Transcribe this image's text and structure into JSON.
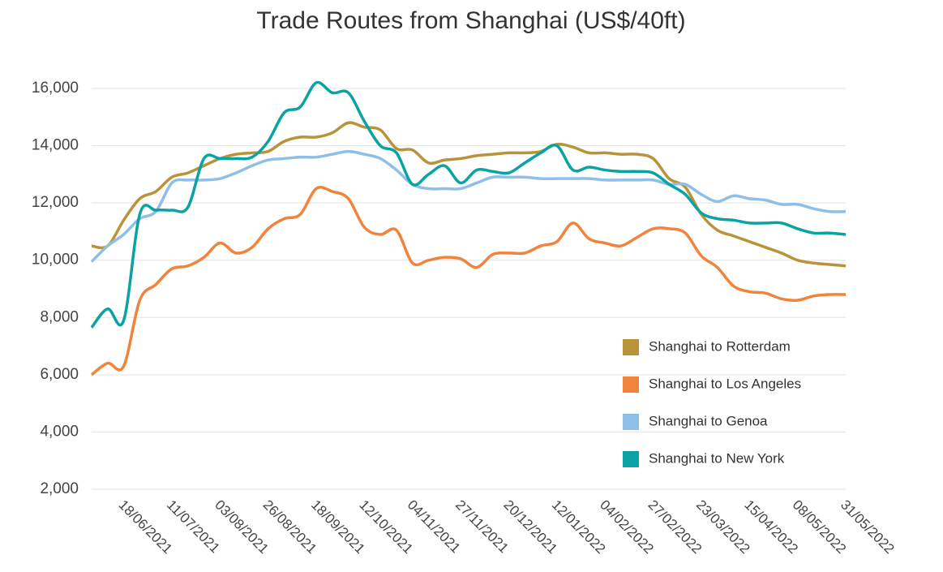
{
  "chart_data": {
    "type": "line",
    "title": "Trade Routes from Shanghai (US$/40ft)",
    "categories": [
      null,
      null,
      "18/06/2021",
      null,
      null,
      "11/07/2021",
      null,
      null,
      "03/08/2021",
      null,
      null,
      "26/08/2021",
      null,
      null,
      "18/09/2021",
      null,
      null,
      "12/10/2021",
      null,
      null,
      "04/11/2021",
      null,
      null,
      "27/11/2021",
      null,
      null,
      "20/12/2021",
      null,
      null,
      "12/01/2022",
      null,
      null,
      "04/02/2022",
      null,
      null,
      "27/02/2022",
      null,
      null,
      "23/03/2022",
      null,
      null,
      "15/04/2022",
      null,
      null,
      "08/05/2022",
      null,
      null,
      "31/05/2022"
    ],
    "series": [
      {
        "name": "Shanghai to Rotterdam",
        "color": "#b8933a",
        "values": [
          10500,
          10500,
          11400,
          12150,
          12400,
          12900,
          13050,
          13300,
          13550,
          13700,
          13750,
          13800,
          14150,
          14300,
          14300,
          14450,
          14800,
          14650,
          14550,
          13900,
          13850,
          13400,
          13500,
          13550,
          13650,
          13700,
          13750,
          13750,
          13800,
          14050,
          13950,
          13750,
          13750,
          13700,
          13700,
          13550,
          12850,
          12550,
          11600,
          11050,
          10850,
          10650,
          10450,
          10250,
          10000,
          9900,
          9850,
          9800
        ]
      },
      {
        "name": "Shanghai to Los Angeles",
        "color": "#f0843c",
        "values": [
          6000,
          6400,
          6300,
          8600,
          9150,
          9700,
          9800,
          10100,
          10600,
          10250,
          10450,
          11100,
          11450,
          11600,
          12500,
          12400,
          12150,
          11150,
          10900,
          11050,
          9900,
          10000,
          10100,
          10050,
          9750,
          10200,
          10250,
          10250,
          10500,
          10650,
          11300,
          10750,
          10600,
          10500,
          10800,
          11100,
          11100,
          10950,
          10150,
          9750,
          9100,
          8900,
          8850,
          8650,
          8600,
          8750,
          8800,
          8800
        ]
      },
      {
        "name": "Shanghai to Genoa",
        "color": "#8fbfe6",
        "values": [
          9950,
          10500,
          10900,
          11450,
          11700,
          12700,
          12800,
          12800,
          12850,
          13050,
          13300,
          13500,
          13550,
          13600,
          13600,
          13700,
          13800,
          13700,
          13550,
          13150,
          12650,
          12500,
          12500,
          12500,
          12700,
          12900,
          12900,
          12900,
          12850,
          12850,
          12850,
          12850,
          12800,
          12800,
          12800,
          12800,
          12650,
          12650,
          12300,
          12050,
          12250,
          12150,
          12100,
          11950,
          11950,
          11800,
          11700,
          11700
        ]
      },
      {
        "name": "Shanghai to New York",
        "color": "#0aa3a3",
        "values": [
          7650,
          8300,
          7900,
          11600,
          11750,
          11750,
          11850,
          13550,
          13550,
          13550,
          13600,
          14150,
          15150,
          15350,
          16200,
          15850,
          15850,
          14850,
          14000,
          13750,
          12650,
          13000,
          13300,
          12700,
          13150,
          13100,
          13050,
          13400,
          13750,
          14000,
          13150,
          13250,
          13150,
          13100,
          13100,
          13050,
          12650,
          12300,
          11650,
          11450,
          11400,
          11300,
          11300,
          11300,
          11100,
          10950,
          10950,
          10900
        ]
      }
    ],
    "ylim": [
      2000,
      16000
    ],
    "yticks": [
      {
        "value": 2000,
        "label": "2,000"
      },
      {
        "value": 4000,
        "label": "4,000"
      },
      {
        "value": 6000,
        "label": "6,000"
      },
      {
        "value": 8000,
        "label": "8,000"
      },
      {
        "value": 10000,
        "label": "10,000"
      },
      {
        "value": 12000,
        "label": "12,000"
      },
      {
        "value": 14000,
        "label": "14,000"
      },
      {
        "value": 16000,
        "label": "16,000"
      }
    ],
    "grid": true,
    "legend": "right"
  }
}
